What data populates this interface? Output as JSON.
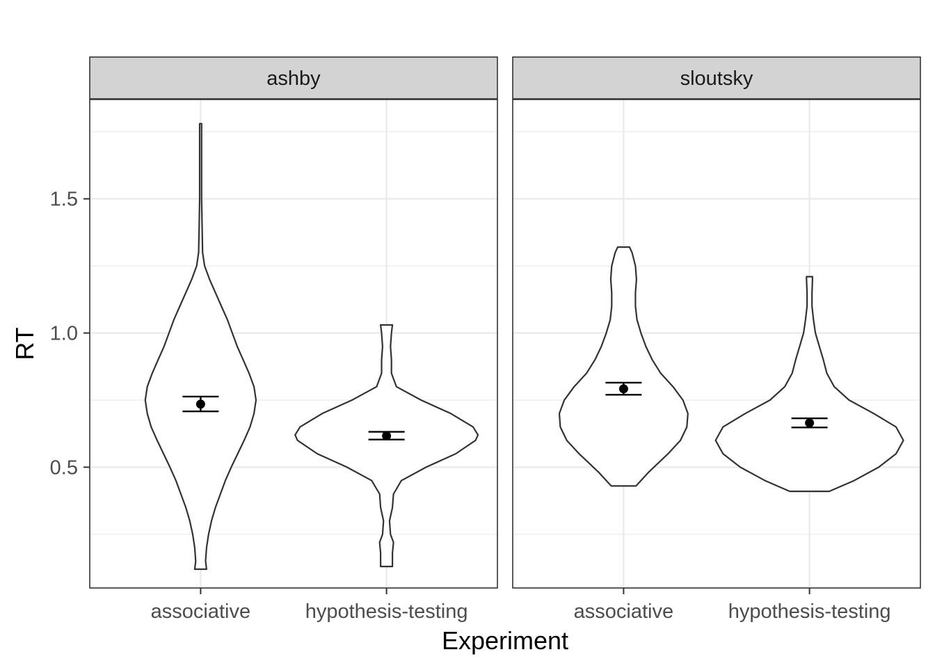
{
  "chart_data": {
    "type": "violin",
    "xlabel": "Experiment",
    "ylabel": "RT",
    "categories": [
      "associative",
      "hypothesis-testing"
    ],
    "ylim": [
      0.05,
      1.87
    ],
    "yticks": [
      0.5,
      1.0,
      1.5
    ],
    "ytick_labels": [
      "0.5",
      "1.0",
      "1.5"
    ],
    "grid": true,
    "colors": {
      "strip": "#d3d3d3",
      "line": "#333333",
      "grid": "#ebebeb",
      "point": "#000000"
    },
    "facets": [
      {
        "label": "ashby",
        "groups": [
          {
            "category": "associative",
            "mean": 0.735,
            "ci_low": 0.708,
            "ci_high": 0.763,
            "density": [
              [
                0.12,
                0.012
              ],
              [
                0.15,
                0.01
              ],
              [
                0.2,
                0.012
              ],
              [
                0.25,
                0.016
              ],
              [
                0.3,
                0.022
              ],
              [
                0.35,
                0.03
              ],
              [
                0.4,
                0.04
              ],
              [
                0.45,
                0.05
              ],
              [
                0.5,
                0.062
              ],
              [
                0.55,
                0.075
              ],
              [
                0.6,
                0.088
              ],
              [
                0.65,
                0.1
              ],
              [
                0.7,
                0.108
              ],
              [
                0.75,
                0.112
              ],
              [
                0.8,
                0.108
              ],
              [
                0.85,
                0.098
              ],
              [
                0.9,
                0.086
              ],
              [
                0.95,
                0.074
              ],
              [
                1.0,
                0.064
              ],
              [
                1.05,
                0.054
              ],
              [
                1.1,
                0.042
              ],
              [
                1.15,
                0.03
              ],
              [
                1.2,
                0.018
              ],
              [
                1.25,
                0.008
              ],
              [
                1.3,
                0.004
              ],
              [
                1.4,
                0.003
              ],
              [
                1.5,
                0.002
              ],
              [
                1.6,
                0.002
              ],
              [
                1.7,
                0.002
              ],
              [
                1.78,
                0.002
              ]
            ]
          },
          {
            "category": "hypothesis-testing",
            "mean": 0.617,
            "ci_low": 0.603,
            "ci_high": 0.632,
            "density": [
              [
                0.13,
                0.012
              ],
              [
                0.18,
                0.012
              ],
              [
                0.22,
                0.014
              ],
              [
                0.25,
                0.008
              ],
              [
                0.3,
                0.006
              ],
              [
                0.35,
                0.012
              ],
              [
                0.4,
                0.014
              ],
              [
                0.45,
                0.03
              ],
              [
                0.5,
                0.08
              ],
              [
                0.55,
                0.14
              ],
              [
                0.6,
                0.18
              ],
              [
                0.62,
                0.185
              ],
              [
                0.65,
                0.175
              ],
              [
                0.7,
                0.13
              ],
              [
                0.75,
                0.07
              ],
              [
                0.8,
                0.02
              ],
              [
                0.85,
                0.01
              ],
              [
                0.9,
                0.01
              ],
              [
                0.95,
                0.008
              ],
              [
                1.0,
                0.01
              ],
              [
                1.03,
                0.012
              ]
            ]
          }
        ]
      },
      {
        "label": "sloutsky",
        "groups": [
          {
            "category": "associative",
            "mean": 0.792,
            "ci_low": 0.77,
            "ci_high": 0.815,
            "density": [
              [
                0.43,
                0.025
              ],
              [
                0.48,
                0.05
              ],
              [
                0.55,
                0.09
              ],
              [
                0.6,
                0.115
              ],
              [
                0.65,
                0.128
              ],
              [
                0.7,
                0.13
              ],
              [
                0.75,
                0.12
              ],
              [
                0.8,
                0.1
              ],
              [
                0.85,
                0.075
              ],
              [
                0.9,
                0.058
              ],
              [
                0.95,
                0.045
              ],
              [
                1.0,
                0.035
              ],
              [
                1.05,
                0.027
              ],
              [
                1.1,
                0.024
              ],
              [
                1.15,
                0.024
              ],
              [
                1.2,
                0.026
              ],
              [
                1.25,
                0.024
              ],
              [
                1.3,
                0.017
              ],
              [
                1.32,
                0.012
              ]
            ]
          },
          {
            "category": "hypothesis-testing",
            "mean": 0.665,
            "ci_low": 0.648,
            "ci_high": 0.682,
            "density": [
              [
                0.41,
                0.04
              ],
              [
                0.45,
                0.09
              ],
              [
                0.5,
                0.14
              ],
              [
                0.55,
                0.175
              ],
              [
                0.6,
                0.19
              ],
              [
                0.65,
                0.175
              ],
              [
                0.7,
                0.13
              ],
              [
                0.75,
                0.08
              ],
              [
                0.8,
                0.05
              ],
              [
                0.85,
                0.035
              ],
              [
                0.9,
                0.028
              ],
              [
                0.95,
                0.02
              ],
              [
                1.0,
                0.012
              ],
              [
                1.05,
                0.008
              ],
              [
                1.1,
                0.005
              ],
              [
                1.15,
                0.005
              ],
              [
                1.2,
                0.006
              ],
              [
                1.21,
                0.006
              ]
            ]
          }
        ]
      }
    ]
  }
}
